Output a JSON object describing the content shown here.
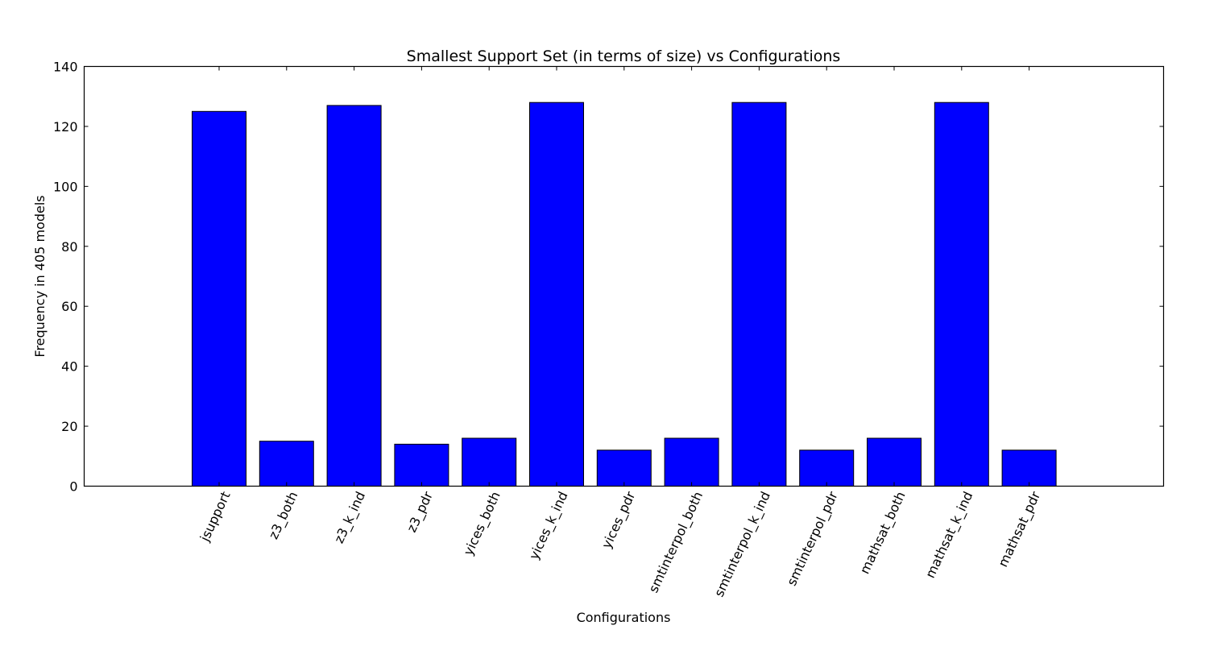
{
  "chart_data": {
    "type": "bar",
    "title": "Smallest Support Set (in terms of size) vs Configurations",
    "xlabel": "Configurations",
    "ylabel": "Frequency in 405 models",
    "categories": [
      "jsupport",
      "z3_both",
      "z3_k_ind",
      "z3_pdr",
      "yices_both",
      "yices_k_ind",
      "yices_pdr",
      "smtinterpol_both",
      "smtinterpol_k_ind",
      "smtinterpol_pdr",
      "mathsat_both",
      "mathsat_k_ind",
      "mathsat_pdr"
    ],
    "values": [
      125,
      15,
      127,
      14,
      16,
      128,
      12,
      16,
      128,
      12,
      16,
      128,
      12
    ],
    "ylim": [
      0,
      140
    ],
    "yticks": [
      "0",
      "20",
      "40",
      "60",
      "80",
      "100",
      "120",
      "140"
    ],
    "grid": false,
    "legend": "none",
    "bar_color": "#0000ff",
    "edge_color": "#000000"
  }
}
